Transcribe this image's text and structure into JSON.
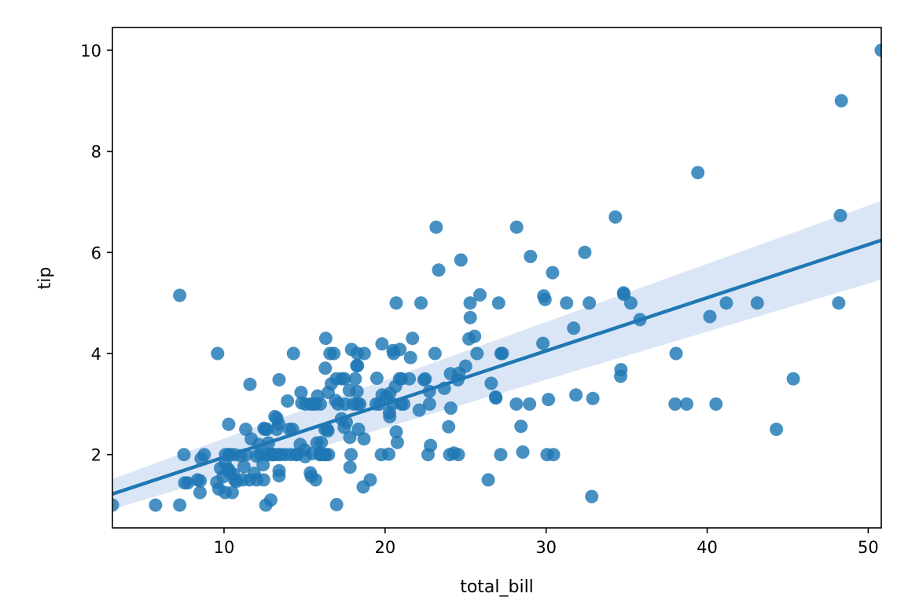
{
  "chart_data": {
    "type": "scatter",
    "title": "",
    "xlabel": "total_bill",
    "ylabel": "tip",
    "xlim": [
      3.07,
      50.81
    ],
    "ylim": [
      0.55,
      10.45
    ],
    "xticks": [
      10,
      20,
      30,
      40,
      50
    ],
    "yticks": [
      2,
      4,
      6,
      8,
      10
    ],
    "grid": false,
    "legend": "none",
    "colors": {
      "points": "#1f77b4",
      "line": "#1f77b4",
      "band": "#aec7e8"
    },
    "regression": {
      "x": [
        3.07,
        50.81
      ],
      "y": [
        1.22,
        6.24
      ],
      "ci_low": [
        0.92,
        5.46
      ],
      "ci_high": [
        1.52,
        7.02
      ]
    },
    "points": [
      [
        3.07,
        1.0
      ],
      [
        5.75,
        1.0
      ],
      [
        7.25,
        1.0
      ],
      [
        7.25,
        5.15
      ],
      [
        7.51,
        2.0
      ],
      [
        7.56,
        1.44
      ],
      [
        7.74,
        1.44
      ],
      [
        8.35,
        1.5
      ],
      [
        8.51,
        1.25
      ],
      [
        8.52,
        1.48
      ],
      [
        8.58,
        1.92
      ],
      [
        8.77,
        2.0
      ],
      [
        9.55,
        1.45
      ],
      [
        9.6,
        4.0
      ],
      [
        9.68,
        1.32
      ],
      [
        9.78,
        1.73
      ],
      [
        9.94,
        1.56
      ],
      [
        10.07,
        1.83
      ],
      [
        10.07,
        1.25
      ],
      [
        10.09,
        2.0
      ],
      [
        10.27,
        1.71
      ],
      [
        10.29,
        2.6
      ],
      [
        10.33,
        1.67
      ],
      [
        10.33,
        2.0
      ],
      [
        10.34,
        1.66
      ],
      [
        10.34,
        2.0
      ],
      [
        10.51,
        1.25
      ],
      [
        10.59,
        1.61
      ],
      [
        10.63,
        2.0
      ],
      [
        10.65,
        1.5
      ],
      [
        10.77,
        1.47
      ],
      [
        11.02,
        1.98
      ],
      [
        11.17,
        1.5
      ],
      [
        11.24,
        1.76
      ],
      [
        11.35,
        2.5
      ],
      [
        11.38,
        2.0
      ],
      [
        11.59,
        1.5
      ],
      [
        11.61,
        3.39
      ],
      [
        11.69,
        2.31
      ],
      [
        11.87,
        1.63
      ],
      [
        12.02,
        1.97
      ],
      [
        12.03,
        1.5
      ],
      [
        12.16,
        2.2
      ],
      [
        12.26,
        2.0
      ],
      [
        12.43,
        1.8
      ],
      [
        12.46,
        1.5
      ],
      [
        12.48,
        2.52
      ],
      [
        12.54,
        2.5
      ],
      [
        12.6,
        1.0
      ],
      [
        12.66,
        2.5
      ],
      [
        12.69,
        2.0
      ],
      [
        12.74,
        2.01
      ],
      [
        12.76,
        2.23
      ],
      [
        12.9,
        1.1
      ],
      [
        13.0,
        2.0
      ],
      [
        13.03,
        2.0
      ],
      [
        13.13,
        2.0
      ],
      [
        13.16,
        2.75
      ],
      [
        13.27,
        2.5
      ],
      [
        13.28,
        2.72
      ],
      [
        13.37,
        2.0
      ],
      [
        13.39,
        2.61
      ],
      [
        13.42,
        1.68
      ],
      [
        13.42,
        3.48
      ],
      [
        13.42,
        1.58
      ],
      [
        13.51,
        2.0
      ],
      [
        13.81,
        2.0
      ],
      [
        13.94,
        3.06
      ],
      [
        14.07,
        2.5
      ],
      [
        14.15,
        2.0
      ],
      [
        14.26,
        2.5
      ],
      [
        14.31,
        4.0
      ],
      [
        14.48,
        2.0
      ],
      [
        14.52,
        2.0
      ],
      [
        14.73,
        2.2
      ],
      [
        14.78,
        3.23
      ],
      [
        14.83,
        3.02
      ],
      [
        15.01,
        2.09
      ],
      [
        15.04,
        1.96
      ],
      [
        15.06,
        3.0
      ],
      [
        15.36,
        1.64
      ],
      [
        15.38,
        3.0
      ],
      [
        15.42,
        1.57
      ],
      [
        15.48,
        2.02
      ],
      [
        15.53,
        3.0
      ],
      [
        15.69,
        1.5
      ],
      [
        15.69,
        3.0
      ],
      [
        15.77,
        2.23
      ],
      [
        15.81,
        3.16
      ],
      [
        15.95,
        2.0
      ],
      [
        15.98,
        2.03
      ],
      [
        15.98,
        3.0
      ],
      [
        16.0,
        2.0
      ],
      [
        16.04,
        2.24
      ],
      [
        16.21,
        2.0
      ],
      [
        16.27,
        2.5
      ],
      [
        16.29,
        3.71
      ],
      [
        16.31,
        2.0
      ],
      [
        16.32,
        4.3
      ],
      [
        16.4,
        2.5
      ],
      [
        16.45,
        2.47
      ],
      [
        16.47,
        3.23
      ],
      [
        16.49,
        2.0
      ],
      [
        16.58,
        4.0
      ],
      [
        16.66,
        3.4
      ],
      [
        16.82,
        4.0
      ],
      [
        16.93,
        3.07
      ],
      [
        16.97,
        3.5
      ],
      [
        16.99,
        1.01
      ],
      [
        17.07,
        3.0
      ],
      [
        17.29,
        2.71
      ],
      [
        17.31,
        3.5
      ],
      [
        17.46,
        2.54
      ],
      [
        17.47,
        3.5
      ],
      [
        17.51,
        3.0
      ],
      [
        17.59,
        2.64
      ],
      [
        17.78,
        3.27
      ],
      [
        17.81,
        2.34
      ],
      [
        17.82,
        1.75
      ],
      [
        17.89,
        2.0
      ],
      [
        17.92,
        4.08
      ],
      [
        18.04,
        3.0
      ],
      [
        18.15,
        3.5
      ],
      [
        18.24,
        3.76
      ],
      [
        18.26,
        3.25
      ],
      [
        18.28,
        4.0
      ],
      [
        18.29,
        3.76
      ],
      [
        18.29,
        3.0
      ],
      [
        18.35,
        2.5
      ],
      [
        18.43,
        3.0
      ],
      [
        18.64,
        1.36
      ],
      [
        18.69,
        2.31
      ],
      [
        18.71,
        4.0
      ],
      [
        19.08,
        1.5
      ],
      [
        19.44,
        3.0
      ],
      [
        19.49,
        3.51
      ],
      [
        19.65,
        3.0
      ],
      [
        19.77,
        2.0
      ],
      [
        19.81,
        4.19
      ],
      [
        19.82,
        3.18
      ],
      [
        20.08,
        3.15
      ],
      [
        20.23,
        2.01
      ],
      [
        20.27,
        2.83
      ],
      [
        20.29,
        2.75
      ],
      [
        20.29,
        3.21
      ],
      [
        20.45,
        3.0
      ],
      [
        20.49,
        4.06
      ],
      [
        20.53,
        4.0
      ],
      [
        20.65,
        3.35
      ],
      [
        20.69,
        2.45
      ],
      [
        20.69,
        5.0
      ],
      [
        20.76,
        2.24
      ],
      [
        20.9,
        3.5
      ],
      [
        20.92,
        4.08
      ],
      [
        21.01,
        3.5
      ],
      [
        21.01,
        3.0
      ],
      [
        21.16,
        3.0
      ],
      [
        21.5,
        3.5
      ],
      [
        21.58,
        3.92
      ],
      [
        21.7,
        4.3
      ],
      [
        22.12,
        2.88
      ],
      [
        22.23,
        5.0
      ],
      [
        22.42,
        3.48
      ],
      [
        22.49,
        3.5
      ],
      [
        22.67,
        2.0
      ],
      [
        22.75,
        3.25
      ],
      [
        22.76,
        3.0
      ],
      [
        22.82,
        2.18
      ],
      [
        23.1,
        4.0
      ],
      [
        23.17,
        6.5
      ],
      [
        23.33,
        5.65
      ],
      [
        23.68,
        3.31
      ],
      [
        23.95,
        2.55
      ],
      [
        24.01,
        2.0
      ],
      [
        24.06,
        3.6
      ],
      [
        24.08,
        2.92
      ],
      [
        24.27,
        2.03
      ],
      [
        24.52,
        3.48
      ],
      [
        24.55,
        2.0
      ],
      [
        24.59,
        3.61
      ],
      [
        24.71,
        5.85
      ],
      [
        25.0,
        3.75
      ],
      [
        25.21,
        4.29
      ],
      [
        25.28,
        5.0
      ],
      [
        25.29,
        4.71
      ],
      [
        25.56,
        4.34
      ],
      [
        25.71,
        4.0
      ],
      [
        25.89,
        5.16
      ],
      [
        26.41,
        1.5
      ],
      [
        26.59,
        3.41
      ],
      [
        26.88,
        3.12
      ],
      [
        26.86,
        3.14
      ],
      [
        27.05,
        5.0
      ],
      [
        27.18,
        2.0
      ],
      [
        27.2,
        4.0
      ],
      [
        27.28,
        4.0
      ],
      [
        28.15,
        3.0
      ],
      [
        28.17,
        6.5
      ],
      [
        28.44,
        2.56
      ],
      [
        28.55,
        2.05
      ],
      [
        28.97,
        3.0
      ],
      [
        29.03,
        5.92
      ],
      [
        29.8,
        4.2
      ],
      [
        29.85,
        5.14
      ],
      [
        29.93,
        5.07
      ],
      [
        30.06,
        2.0
      ],
      [
        30.14,
        3.09
      ],
      [
        30.4,
        5.6
      ],
      [
        30.46,
        2.0
      ],
      [
        31.27,
        5.0
      ],
      [
        31.71,
        4.5
      ],
      [
        31.85,
        3.18
      ],
      [
        32.4,
        6.0
      ],
      [
        32.68,
        5.0
      ],
      [
        32.83,
        1.17
      ],
      [
        32.9,
        3.11
      ],
      [
        34.3,
        6.7
      ],
      [
        34.63,
        3.55
      ],
      [
        34.65,
        3.68
      ],
      [
        34.81,
        5.2
      ],
      [
        34.83,
        5.17
      ],
      [
        35.26,
        5.0
      ],
      [
        35.83,
        4.67
      ],
      [
        38.01,
        3.0
      ],
      [
        38.07,
        4.0
      ],
      [
        38.73,
        3.0
      ],
      [
        39.42,
        7.58
      ],
      [
        40.17,
        4.73
      ],
      [
        40.55,
        3.0
      ],
      [
        41.19,
        5.0
      ],
      [
        43.11,
        5.0
      ],
      [
        44.3,
        2.5
      ],
      [
        45.35,
        3.5
      ],
      [
        48.17,
        5.0
      ],
      [
        48.27,
        6.73
      ],
      [
        48.33,
        9.0
      ],
      [
        50.81,
        10.0
      ]
    ]
  }
}
